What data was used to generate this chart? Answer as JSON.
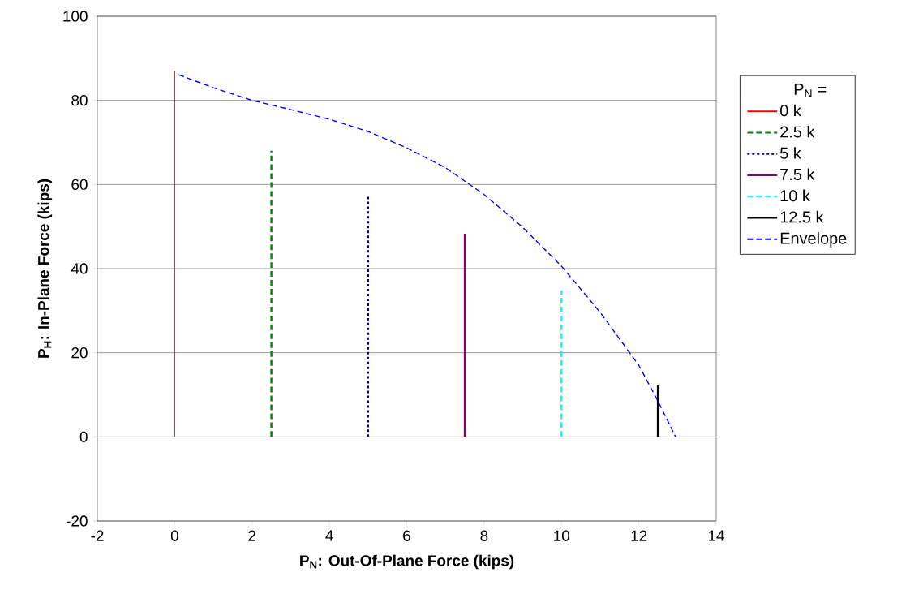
{
  "chart_data": {
    "type": "line",
    "xlabel": "P$_{N}$: Out-Of-Plane Force (kips)",
    "ylabel": "P$_{H}$: In-Plane Force (kips)",
    "legend_title": "P$_{N}$ =",
    "xlim": [
      -2,
      14
    ],
    "xticks": [
      -2,
      0,
      2,
      4,
      6,
      8,
      10,
      12,
      14
    ],
    "ylim": [
      -20,
      100
    ],
    "yticks": [
      -20,
      0,
      20,
      40,
      60,
      80,
      100
    ],
    "grid": "y",
    "legend": "right",
    "marker": "none",
    "series": [
      {
        "name": "0 k",
        "color": "#ff0000",
        "line_style": "solid",
        "x": [
          0,
          0
        ],
        "values": [
          0,
          87
        ]
      },
      {
        "name": "2.5 k",
        "color": "#008000",
        "line_style": "dashed",
        "x": [
          2.5,
          2.5
        ],
        "values": [
          0,
          68
        ]
      },
      {
        "name": "5 k",
        "color": "#000080",
        "line_style": "dotted",
        "x": [
          5,
          5
        ],
        "values": [
          0,
          57.5
        ]
      },
      {
        "name": "7.5 k",
        "color": "#800080",
        "line_style": "solid",
        "x": [
          7.5,
          7.5
        ],
        "values": [
          0,
          48.3
        ]
      },
      {
        "name": "10 k",
        "color": "#00ffff",
        "line_style": "dashed",
        "x": [
          10,
          10
        ],
        "values": [
          0,
          34.8
        ]
      },
      {
        "name": "12.5 k",
        "color": "#000000",
        "line_style": "solid",
        "x": [
          12.5,
          12.5
        ],
        "values": [
          0,
          12.2
        ]
      },
      {
        "name": "Envelope",
        "color": "#0000ff",
        "line_style": "dashed",
        "x": [
          0.1,
          1,
          2,
          3,
          4,
          5,
          6,
          7,
          8,
          9,
          10,
          11,
          12,
          12.5,
          12.95
        ],
        "values": [
          86.1,
          83,
          80,
          77.8,
          75.5,
          72.6,
          68.7,
          64,
          57.6,
          49.8,
          40.6,
          29.6,
          17,
          8.4,
          0
        ]
      }
    ]
  }
}
